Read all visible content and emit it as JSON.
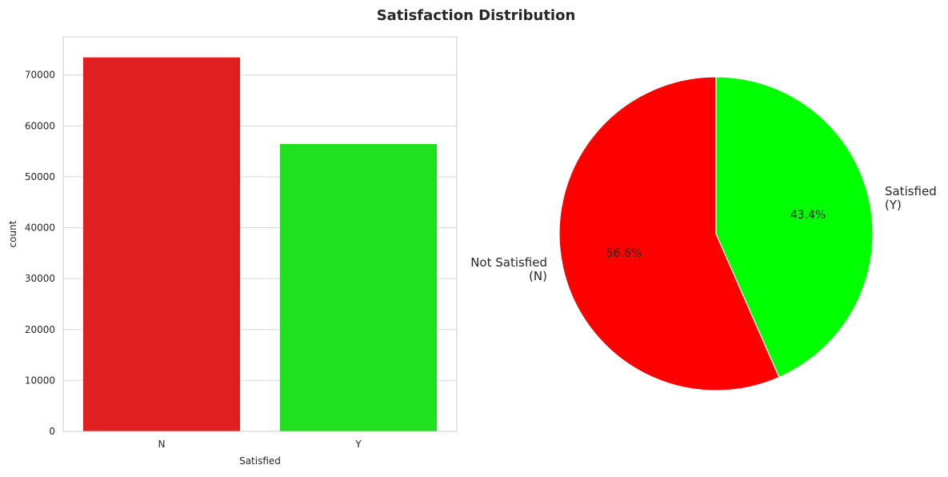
{
  "figure": {
    "title": "Satisfaction Distribution"
  },
  "chart_data": [
    {
      "type": "bar",
      "title": "",
      "xlabel": "Satisfied",
      "ylabel": "count",
      "categories": [
        "N",
        "Y"
      ],
      "values": [
        73500,
        56500
      ],
      "ylim": [
        0,
        77500
      ],
      "yticks": [
        0,
        10000,
        20000,
        30000,
        40000,
        50000,
        60000,
        70000
      ],
      "ytick_labels": [
        "0",
        "10000",
        "20000",
        "30000",
        "40000",
        "50000",
        "60000",
        "70000"
      ],
      "colors": [
        "#e02020",
        "#20e020"
      ],
      "grid": true
    },
    {
      "type": "pie",
      "title": "",
      "labels": [
        "Not Satisfied\n(N)",
        "Satisfied\n(Y)"
      ],
      "values": [
        56.6,
        43.4
      ],
      "autopct_labels": [
        "56.6%",
        "43.4%"
      ],
      "colors": [
        "#ff0000",
        "#00ff00"
      ],
      "start_angle_deg": 90,
      "direction": "counterclockwise"
    }
  ]
}
